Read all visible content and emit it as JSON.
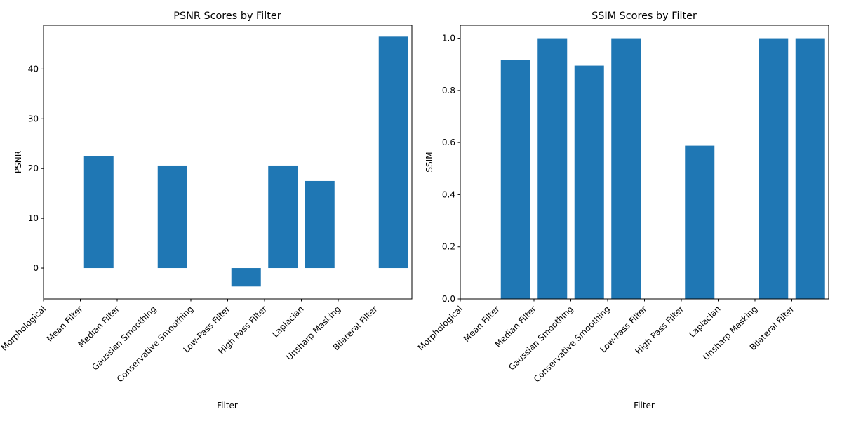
{
  "figure": {
    "background": "#ffffff"
  },
  "chart_data": [
    {
      "type": "bar",
      "title": "PSNR Scores by Filter",
      "xlabel": "Filter",
      "ylabel": "PSNR",
      "tick_labels": [
        "Morphological",
        "Mean Filter",
        "Median Filter",
        "Gaussian Smoothing",
        "Conservative Smoothing",
        "Low-Pass Filter",
        "High Pass Filter",
        "Laplacian",
        "Unsharp Masking",
        "Bilateral Filter"
      ],
      "bar_categories": [
        "Mean Filter",
        "Gaussian Smoothing",
        "Low-Pass Filter",
        "High Pass Filter",
        "Laplacian",
        "Bilateral Filter"
      ],
      "values": [
        22.5,
        20.6,
        -3.7,
        20.6,
        17.5,
        46.5
      ],
      "ylim": [
        -6.2,
        48.8
      ],
      "yticks": [
        0,
        10,
        20,
        30,
        40
      ],
      "color": "#1f77b4",
      "grid": false
    },
    {
      "type": "bar",
      "title": "SSIM Scores by Filter",
      "xlabel": "Filter",
      "ylabel": "SSIM",
      "tick_labels": [
        "Morphological",
        "Mean Filter",
        "Median Filter",
        "Gaussian Smoothing",
        "Conservative Smoothing",
        "Low-Pass Filter",
        "High Pass Filter",
        "Laplacian",
        "Unsharp Masking",
        "Bilateral Filter"
      ],
      "bar_categories": [
        "Mean Filter",
        "Median Filter",
        "Gaussian Smoothing",
        "Conservative Smoothing",
        "High Pass Filter",
        "Unsharp Masking",
        "Bilateral Filter"
      ],
      "values": [
        0.918,
        1.0,
        0.895,
        1.0,
        0.588,
        1.0,
        1.0
      ],
      "ylim": [
        0,
        1.05
      ],
      "yticks": [
        0.0,
        0.2,
        0.4,
        0.6,
        0.8,
        1.0
      ],
      "color": "#1f77b4",
      "grid": false
    }
  ]
}
